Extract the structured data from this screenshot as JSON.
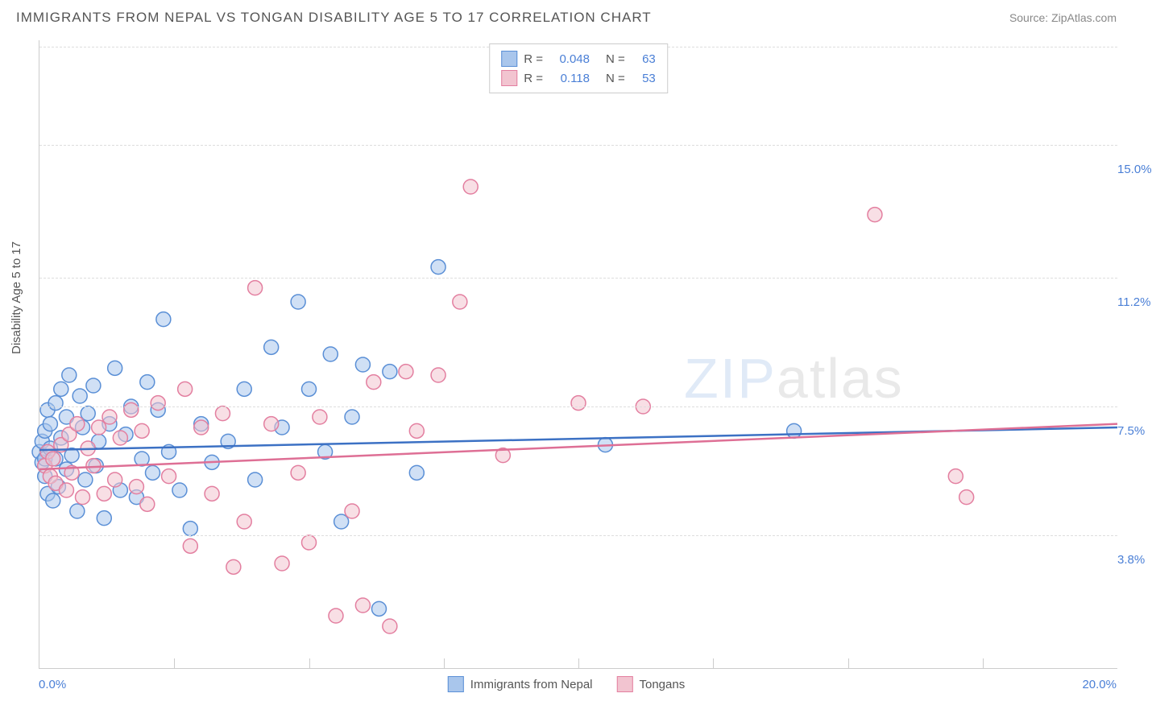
{
  "header": {
    "title": "IMMIGRANTS FROM NEPAL VS TONGAN DISABILITY AGE 5 TO 17 CORRELATION CHART",
    "source": "Source: ZipAtlas.com"
  },
  "chart": {
    "type": "scatter",
    "ylabel": "Disability Age 5 to 17",
    "xlim": [
      0,
      20
    ],
    "ylim": [
      0,
      18
    ],
    "y_gridlines": [
      3.8,
      7.5,
      11.2,
      15.0
    ],
    "y_ticklabels": [
      "3.8%",
      "7.5%",
      "11.2%",
      "15.0%"
    ],
    "x_ticks": [
      2.5,
      5.0,
      7.5,
      10.0,
      12.5,
      15.0,
      17.5
    ],
    "x_label_start": "0.0%",
    "x_label_end": "20.0%",
    "background_color": "#ffffff",
    "grid_color": "#dddddd",
    "axis_color": "#cccccc",
    "marker_radius": 9,
    "marker_stroke_width": 1.5,
    "trend_line_width": 2.5,
    "series": [
      {
        "name": "Immigrants from Nepal",
        "fill_color": "#a9c6ec",
        "stroke_color": "#5a8fd6",
        "line_color": "#3c71c4",
        "R": "0.048",
        "N": "63",
        "trend": {
          "x1": 0,
          "y1": 6.25,
          "x2": 20,
          "y2": 6.9
        },
        "points": [
          [
            0.0,
            6.2
          ],
          [
            0.05,
            6.5
          ],
          [
            0.05,
            5.9
          ],
          [
            0.1,
            6.0
          ],
          [
            0.1,
            6.8
          ],
          [
            0.1,
            5.5
          ],
          [
            0.15,
            7.4
          ],
          [
            0.15,
            5.0
          ],
          [
            0.2,
            6.3
          ],
          [
            0.2,
            7.0
          ],
          [
            0.25,
            4.8
          ],
          [
            0.3,
            7.6
          ],
          [
            0.3,
            6.0
          ],
          [
            0.35,
            5.2
          ],
          [
            0.4,
            8.0
          ],
          [
            0.4,
            6.6
          ],
          [
            0.5,
            7.2
          ],
          [
            0.5,
            5.7
          ],
          [
            0.55,
            8.4
          ],
          [
            0.6,
            6.1
          ],
          [
            0.7,
            4.5
          ],
          [
            0.75,
            7.8
          ],
          [
            0.8,
            6.9
          ],
          [
            0.85,
            5.4
          ],
          [
            0.9,
            7.3
          ],
          [
            1.0,
            8.1
          ],
          [
            1.05,
            5.8
          ],
          [
            1.1,
            6.5
          ],
          [
            1.2,
            4.3
          ],
          [
            1.3,
            7.0
          ],
          [
            1.4,
            8.6
          ],
          [
            1.5,
            5.1
          ],
          [
            1.6,
            6.7
          ],
          [
            1.7,
            7.5
          ],
          [
            1.8,
            4.9
          ],
          [
            1.9,
            6.0
          ],
          [
            2.0,
            8.2
          ],
          [
            2.1,
            5.6
          ],
          [
            2.2,
            7.4
          ],
          [
            2.3,
            10.0
          ],
          [
            2.4,
            6.2
          ],
          [
            2.6,
            5.1
          ],
          [
            2.8,
            4.0
          ],
          [
            3.0,
            7.0
          ],
          [
            3.2,
            5.9
          ],
          [
            3.5,
            6.5
          ],
          [
            3.8,
            8.0
          ],
          [
            4.0,
            5.4
          ],
          [
            4.3,
            9.2
          ],
          [
            4.5,
            6.9
          ],
          [
            4.8,
            10.5
          ],
          [
            5.0,
            8.0
          ],
          [
            5.3,
            6.2
          ],
          [
            5.4,
            9.0
          ],
          [
            5.6,
            4.2
          ],
          [
            5.8,
            7.2
          ],
          [
            6.0,
            8.7
          ],
          [
            6.3,
            1.7
          ],
          [
            6.5,
            8.5
          ],
          [
            7.0,
            5.6
          ],
          [
            7.4,
            11.5
          ],
          [
            10.5,
            6.4
          ],
          [
            14.0,
            6.8
          ]
        ]
      },
      {
        "name": "Tongans",
        "fill_color": "#f2c4d0",
        "stroke_color": "#e37fa0",
        "line_color": "#de6f95",
        "R": "0.118",
        "N": "53",
        "trend": {
          "x1": 0,
          "y1": 5.7,
          "x2": 20,
          "y2": 7.0
        },
        "points": [
          [
            0.1,
            5.8
          ],
          [
            0.15,
            6.2
          ],
          [
            0.2,
            5.5
          ],
          [
            0.25,
            6.0
          ],
          [
            0.3,
            5.3
          ],
          [
            0.4,
            6.4
          ],
          [
            0.5,
            5.1
          ],
          [
            0.55,
            6.7
          ],
          [
            0.6,
            5.6
          ],
          [
            0.7,
            7.0
          ],
          [
            0.8,
            4.9
          ],
          [
            0.9,
            6.3
          ],
          [
            1.0,
            5.8
          ],
          [
            1.1,
            6.9
          ],
          [
            1.2,
            5.0
          ],
          [
            1.3,
            7.2
          ],
          [
            1.4,
            5.4
          ],
          [
            1.5,
            6.6
          ],
          [
            1.7,
            7.4
          ],
          [
            1.8,
            5.2
          ],
          [
            1.9,
            6.8
          ],
          [
            2.0,
            4.7
          ],
          [
            2.2,
            7.6
          ],
          [
            2.4,
            5.5
          ],
          [
            2.7,
            8.0
          ],
          [
            2.8,
            3.5
          ],
          [
            3.0,
            6.9
          ],
          [
            3.2,
            5.0
          ],
          [
            3.4,
            7.3
          ],
          [
            3.6,
            2.9
          ],
          [
            3.8,
            4.2
          ],
          [
            4.0,
            10.9
          ],
          [
            4.3,
            7.0
          ],
          [
            4.5,
            3.0
          ],
          [
            4.8,
            5.6
          ],
          [
            5.0,
            3.6
          ],
          [
            5.2,
            7.2
          ],
          [
            5.5,
            1.5
          ],
          [
            5.8,
            4.5
          ],
          [
            6.0,
            1.8
          ],
          [
            6.2,
            8.2
          ],
          [
            6.5,
            1.2
          ],
          [
            6.8,
            8.5
          ],
          [
            7.0,
            6.8
          ],
          [
            7.4,
            8.4
          ],
          [
            7.8,
            10.5
          ],
          [
            8.0,
            13.8
          ],
          [
            8.6,
            6.1
          ],
          [
            10.0,
            7.6
          ],
          [
            11.2,
            7.5
          ],
          [
            15.5,
            13.0
          ],
          [
            17.0,
            5.5
          ],
          [
            17.2,
            4.9
          ]
        ]
      }
    ]
  },
  "bottom_legend": [
    {
      "label": "Immigrants from Nepal",
      "fill": "#a9c6ec",
      "stroke": "#5a8fd6"
    },
    {
      "label": "Tongans",
      "fill": "#f2c4d0",
      "stroke": "#e37fa0"
    }
  ],
  "watermark": {
    "zip": "ZIP",
    "atlas": "atlas"
  }
}
